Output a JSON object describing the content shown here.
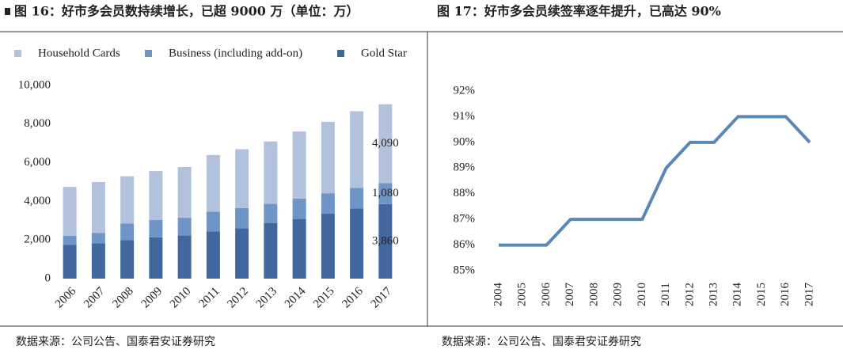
{
  "chart_data": [
    {
      "type": "stacked-bar",
      "title": "图 16：好市多会员数持续增长，已超 9000 万（单位：万）",
      "source": "数据来源：公司公告、国泰君安证券研究",
      "categories": [
        "2006",
        "2007",
        "2008",
        "2009",
        "2010",
        "2011",
        "2012",
        "2013",
        "2014",
        "2015",
        "2016",
        "2017"
      ],
      "series": [
        {
          "name": "Household Cards",
          "color": "#b3c2dc",
          "values": [
            2530,
            2630,
            2450,
            2530,
            2630,
            2930,
            3050,
            3230,
            3480,
            3700,
            3970,
            4090
          ],
          "value_labels": [
            null,
            null,
            null,
            null,
            null,
            null,
            null,
            null,
            null,
            null,
            null,
            "4,090"
          ]
        },
        {
          "name": "Business (including add-on)",
          "color": "#6f95c6",
          "values": [
            480,
            540,
            850,
            900,
            920,
            1020,
            1050,
            1000,
            1050,
            1060,
            1070,
            1080
          ],
          "value_labels": [
            null,
            null,
            null,
            null,
            null,
            null,
            null,
            null,
            null,
            null,
            null,
            "1,080"
          ]
        },
        {
          "name": "Gold Star",
          "color": "#41679e",
          "values": [
            1740,
            1830,
            2000,
            2140,
            2230,
            2450,
            2600,
            2870,
            3090,
            3360,
            3630,
            3860
          ],
          "value_labels": [
            null,
            null,
            null,
            null,
            null,
            null,
            null,
            null,
            null,
            null,
            null,
            "3,860"
          ]
        }
      ],
      "ylim": [
        0,
        10000
      ],
      "yticks": [
        0,
        {
          "value": 2000,
          "label": "2,000"
        },
        {
          "value": 4000,
          "label": "4,000"
        },
        {
          "value": 6000,
          "label": "6,000"
        },
        {
          "value": 8000,
          "label": "8,000"
        },
        {
          "value": 10000,
          "label": "10,000"
        }
      ],
      "legend": "top"
    },
    {
      "type": "line",
      "title": "图 17：好市多会员续签率逐年提升，已高达 90%",
      "source": "数据来源：公司公告、国泰君安证券研究",
      "categories": [
        "2004",
        "2005",
        "2006",
        "2007",
        "2008",
        "2009",
        "2010",
        "2011",
        "2012",
        "2013",
        "2014",
        "2015",
        "2016",
        "2017"
      ],
      "values": [
        86,
        86,
        86,
        87,
        87,
        87,
        87,
        89,
        90,
        90,
        91,
        91,
        91,
        90
      ],
      "color": "#5b86b8",
      "ylim": [
        85,
        92
      ],
      "yticks": [
        {
          "value": 85,
          "label": "85%"
        },
        {
          "value": 86,
          "label": "86%"
        },
        {
          "value": 87,
          "label": "87%"
        },
        {
          "value": 88,
          "label": "88%"
        },
        {
          "value": 89,
          "label": "89%"
        },
        {
          "value": 90,
          "label": "90%"
        },
        {
          "value": 91,
          "label": "91%"
        },
        {
          "value": 92,
          "label": "92%"
        }
      ]
    }
  ]
}
